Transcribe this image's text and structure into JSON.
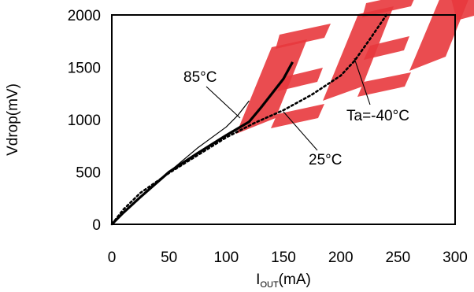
{
  "chart_data": {
    "type": "line",
    "title": "",
    "xlabel": {
      "main": "I",
      "sub": "OUT",
      "unit": "(mA)"
    },
    "ylabel": "Vdrop(mV)",
    "xlim": [
      0,
      300
    ],
    "ylim": [
      0,
      2000
    ],
    "xticks": [
      0,
      50,
      100,
      150,
      200,
      250,
      300
    ],
    "yticks": [
      0,
      500,
      1000,
      1500,
      2000
    ],
    "grid": false,
    "legend": "none",
    "watermark_color": "#e8383d",
    "series": [
      {
        "label": "85°C",
        "color": "#000000",
        "style": "thin",
        "x": [
          0,
          10,
          25,
          50,
          75,
          100,
          110,
          120
        ],
        "y": [
          0,
          110,
          260,
          500,
          730,
          930,
          1040,
          1180
        ]
      },
      {
        "label": "25°C",
        "color": "#000000",
        "style": "thick",
        "x": [
          0,
          10,
          25,
          50,
          75,
          100,
          120,
          130,
          140,
          150,
          158
        ],
        "y": [
          0,
          110,
          260,
          500,
          680,
          850,
          980,
          1110,
          1250,
          1390,
          1550
        ]
      },
      {
        "label": "Ta=-40°C",
        "color": "#000000",
        "style": "dotted",
        "x": [
          0,
          10,
          25,
          50,
          75,
          100,
          125,
          150,
          175,
          200,
          212,
          225,
          240
        ],
        "y": [
          0,
          140,
          300,
          490,
          660,
          830,
          970,
          1090,
          1240,
          1420,
          1560,
          1760,
          2000
        ]
      }
    ],
    "annotations": [
      {
        "text": "85°C",
        "series": 0
      },
      {
        "text": "25°C",
        "series": 1
      },
      {
        "text": "Ta=-40°C",
        "series": 2
      }
    ]
  }
}
